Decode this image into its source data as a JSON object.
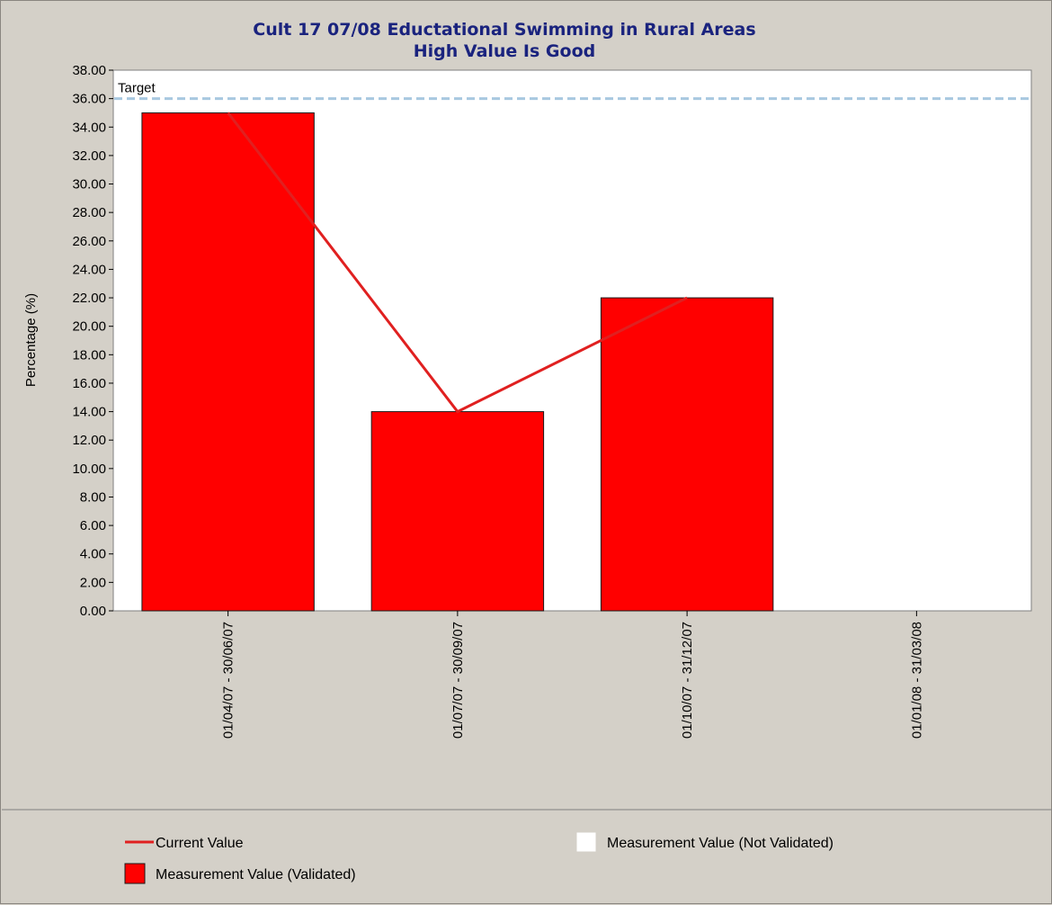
{
  "chart_data": {
    "type": "bar",
    "title": "Cult 17 07/08 Eductational Swimming in Rural Areas",
    "subtitle": "High Value Is Good",
    "ylabel": "Percentage (%)",
    "xlabel": "",
    "ylim": [
      0,
      38
    ],
    "ytick_step": 2,
    "ytick_format_decimals": 2,
    "categories": [
      "01/04/07 - 30/06/07",
      "01/07/07 - 30/09/07",
      "01/10/07 - 31/12/07",
      "01/01/08 - 31/03/08"
    ],
    "series": [
      {
        "name": "Measurement Value (Validated)",
        "type": "bar",
        "values": [
          35,
          14,
          22,
          null
        ],
        "color": "#ff0000"
      },
      {
        "name": "Current Value",
        "type": "line",
        "values": [
          35,
          14,
          22,
          null
        ],
        "color": "#e02020"
      }
    ],
    "target": {
      "label": "Target",
      "value": 36,
      "color": "#a8c8e0"
    },
    "legend": {
      "placement": "bottom",
      "items": [
        {
          "label": "Current Value",
          "kind": "line",
          "color": "#e02020"
        },
        {
          "label": "Measurement Value (Not Validated)",
          "kind": "box",
          "color": "#ffffff"
        },
        {
          "label": "Measurement Value (Validated)",
          "kind": "box",
          "color": "#ff0000"
        }
      ]
    },
    "grid": false
  }
}
